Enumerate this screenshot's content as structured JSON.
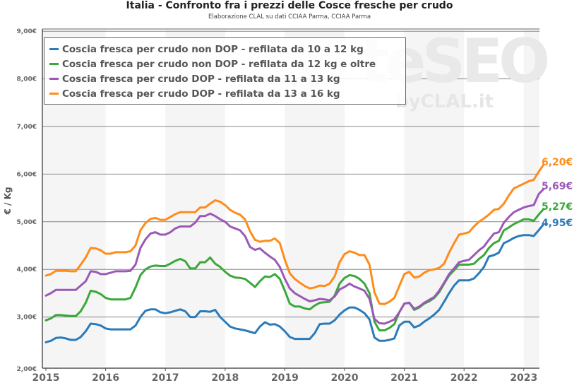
{
  "header": {
    "title": "Italia - Confronto fra i prezzi delle Cosce fresche per crudo",
    "subtitle": "Elaborazione CLAL su dati CCIAA Parma, CCIAA Parma"
  },
  "watermark": {
    "big": "teSEO",
    "small": "byCLAL.it"
  },
  "colors": {
    "blue": "#2b7bba",
    "green": "#3aa83a",
    "purple": "#9b59b6",
    "orange": "#ff8c1a",
    "grid": "#888888",
    "band": "#f5f5f5"
  },
  "chart_data": {
    "type": "line",
    "title": "Italia - Confronto fra i prezzi delle Cosce fresche per crudo",
    "subtitle": "Elaborazione CLAL su dati CCIAA Parma, CCIAA Parma",
    "xlabel": "",
    "ylabel": "€ / Kg",
    "ylim": [
      2,
      9
    ],
    "yticks": [
      "2,00€",
      "3,00€",
      "4,00€",
      "5,00€",
      "6,00€",
      "7,00€",
      "8,00€",
      "9,00€"
    ],
    "xticks": [
      "2015",
      "2016",
      "2017",
      "2018",
      "2019",
      "2020",
      "2021",
      "2022",
      "2023"
    ],
    "x_start": "2015-01",
    "x_end": "2023-03",
    "frequency": "monthly",
    "grid": true,
    "legend_position": "top-left inside",
    "series": [
      {
        "name": "Coscia fresca per crudo non DOP - refilata da 10 a 12 kg",
        "color": "#2b7bba",
        "end_label": "4,95€",
        "values": [
          2.47,
          2.5,
          2.56,
          2.57,
          2.55,
          2.52,
          2.52,
          2.58,
          2.7,
          2.86,
          2.85,
          2.82,
          2.76,
          2.74,
          2.74,
          2.74,
          2.74,
          2.74,
          2.82,
          3.0,
          3.13,
          3.16,
          3.16,
          3.1,
          3.08,
          3.1,
          3.13,
          3.16,
          3.12,
          3.0,
          3.0,
          3.12,
          3.12,
          3.11,
          3.15,
          3.0,
          2.9,
          2.8,
          2.76,
          2.74,
          2.72,
          2.69,
          2.66,
          2.8,
          2.89,
          2.84,
          2.85,
          2.8,
          2.7,
          2.58,
          2.54,
          2.54,
          2.54,
          2.54,
          2.66,
          2.85,
          2.86,
          2.86,
          2.93,
          3.05,
          3.14,
          3.2,
          3.2,
          3.15,
          3.08,
          2.95,
          2.57,
          2.5,
          2.5,
          2.52,
          2.55,
          2.82,
          2.9,
          2.9,
          2.78,
          2.82,
          2.9,
          2.97,
          3.05,
          3.15,
          3.32,
          3.5,
          3.66,
          3.77,
          3.77,
          3.77,
          3.81,
          3.92,
          4.05,
          4.27,
          4.3,
          4.35,
          4.55,
          4.6,
          4.66,
          4.7,
          4.72,
          4.72,
          4.7,
          4.82,
          4.95
        ]
      },
      {
        "name": "Coscia fresca per crudo non DOP - refilata da 12 kg e oltre",
        "color": "#3aa83a",
        "end_label": "5,27€",
        "values": [
          2.93,
          2.97,
          3.04,
          3.04,
          3.03,
          3.02,
          3.02,
          3.12,
          3.3,
          3.55,
          3.53,
          3.48,
          3.4,
          3.37,
          3.37,
          3.37,
          3.37,
          3.4,
          3.62,
          3.88,
          4.0,
          4.06,
          4.08,
          4.07,
          4.07,
          4.12,
          4.18,
          4.22,
          4.17,
          4.02,
          4.02,
          4.15,
          4.15,
          4.25,
          4.12,
          4.05,
          3.95,
          3.87,
          3.83,
          3.82,
          3.8,
          3.72,
          3.63,
          3.75,
          3.85,
          3.84,
          3.9,
          3.8,
          3.55,
          3.28,
          3.22,
          3.22,
          3.18,
          3.16,
          3.24,
          3.3,
          3.31,
          3.32,
          3.45,
          3.7,
          3.82,
          3.88,
          3.86,
          3.8,
          3.7,
          3.5,
          2.9,
          2.72,
          2.72,
          2.77,
          2.85,
          3.1,
          3.28,
          3.3,
          3.15,
          3.2,
          3.28,
          3.33,
          3.4,
          3.52,
          3.7,
          3.87,
          3.98,
          4.1,
          4.1,
          4.1,
          4.12,
          4.22,
          4.3,
          4.45,
          4.55,
          4.6,
          4.82,
          4.88,
          4.95,
          5.0,
          5.05,
          5.05,
          5.02,
          5.15,
          5.27
        ]
      },
      {
        "name": "Coscia fresca per crudo DOP - refilata da 11 a 13 kg",
        "color": "#9b59b6",
        "end_label": "5,69€",
        "values": [
          3.45,
          3.5,
          3.57,
          3.57,
          3.57,
          3.57,
          3.57,
          3.66,
          3.75,
          3.96,
          3.95,
          3.9,
          3.9,
          3.93,
          3.96,
          3.96,
          3.96,
          3.97,
          4.1,
          4.45,
          4.63,
          4.75,
          4.78,
          4.73,
          4.73,
          4.78,
          4.86,
          4.9,
          4.9,
          4.9,
          4.98,
          5.12,
          5.12,
          5.17,
          5.12,
          5.05,
          5.0,
          4.9,
          4.86,
          4.82,
          4.7,
          4.47,
          4.41,
          4.44,
          4.35,
          4.27,
          4.2,
          4.05,
          3.8,
          3.6,
          3.5,
          3.44,
          3.38,
          3.33,
          3.35,
          3.38,
          3.37,
          3.35,
          3.43,
          3.58,
          3.63,
          3.7,
          3.64,
          3.6,
          3.55,
          3.38,
          2.96,
          2.87,
          2.86,
          2.9,
          2.95,
          3.1,
          3.28,
          3.3,
          3.17,
          3.22,
          3.3,
          3.36,
          3.42,
          3.55,
          3.72,
          3.9,
          4.02,
          4.15,
          4.18,
          4.2,
          4.3,
          4.4,
          4.48,
          4.62,
          4.75,
          4.78,
          4.98,
          5.1,
          5.2,
          5.25,
          5.3,
          5.33,
          5.35,
          5.58,
          5.69
        ]
      },
      {
        "name": "Coscia fresca per crudo DOP - refilata da 13 a 16 kg",
        "color": "#ff8c1a",
        "end_label": "6,20€",
        "values": [
          3.87,
          3.9,
          3.97,
          3.97,
          3.97,
          3.96,
          3.96,
          4.1,
          4.25,
          4.45,
          4.44,
          4.4,
          4.33,
          4.33,
          4.36,
          4.36,
          4.36,
          4.38,
          4.5,
          4.82,
          4.97,
          5.06,
          5.08,
          5.04,
          5.04,
          5.1,
          5.16,
          5.2,
          5.2,
          5.2,
          5.2,
          5.3,
          5.3,
          5.38,
          5.45,
          5.42,
          5.35,
          5.25,
          5.19,
          5.15,
          5.05,
          4.8,
          4.62,
          4.58,
          4.6,
          4.6,
          4.65,
          4.55,
          4.2,
          3.92,
          3.8,
          3.72,
          3.65,
          3.6,
          3.62,
          3.66,
          3.65,
          3.7,
          3.85,
          4.15,
          4.32,
          4.38,
          4.35,
          4.3,
          4.3,
          4.1,
          3.52,
          3.28,
          3.27,
          3.32,
          3.4,
          3.65,
          3.9,
          3.95,
          3.83,
          3.85,
          3.93,
          3.98,
          4.0,
          4.03,
          4.12,
          4.35,
          4.55,
          4.73,
          4.75,
          4.78,
          4.9,
          5.0,
          5.07,
          5.15,
          5.25,
          5.27,
          5.38,
          5.55,
          5.7,
          5.75,
          5.8,
          5.85,
          5.88,
          6.05,
          6.2
        ]
      }
    ]
  }
}
